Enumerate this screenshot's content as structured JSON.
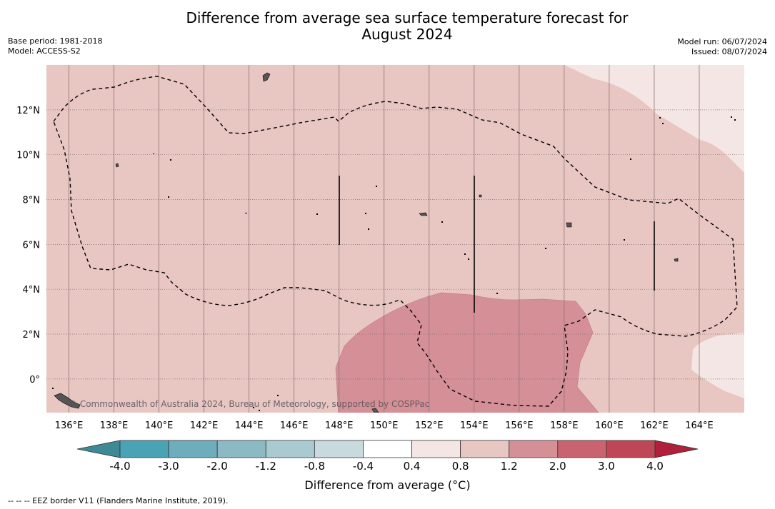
{
  "title_line1": "Difference from average sea surface temperature forecast for",
  "title_line2": "August 2024",
  "meta_left": {
    "base_period": "Base period: 1981-2018",
    "model": "Model: ACCESS-S2"
  },
  "meta_right": {
    "model_run": "Model run: 06/07/2024",
    "issued": "Issued: 08/07/2024"
  },
  "map": {
    "lat_labels": [
      "12°N",
      "10°N",
      "8°N",
      "6°N",
      "4°N",
      "2°N",
      "0°"
    ],
    "lat_values": [
      12,
      10,
      8,
      6,
      4,
      2,
      0
    ],
    "lon_labels": [
      "136°E",
      "138°E",
      "140°E",
      "142°E",
      "144°E",
      "146°E",
      "148°E",
      "150°E",
      "152°E",
      "154°E",
      "156°E",
      "158°E",
      "160°E",
      "162°E",
      "164°E"
    ],
    "lon_values": [
      136,
      138,
      140,
      142,
      144,
      146,
      148,
      150,
      152,
      154,
      156,
      158,
      160,
      162,
      164
    ],
    "extent": {
      "lon_min": 135.0,
      "lon_max": 166.0,
      "lat_min": -1.5,
      "lat_max": 14.0
    },
    "copyright": "© Commonwealth of Australia 2024, Bureau of Meteorology, supported by COSPPac",
    "colors": {
      "base": "#e8c6c2",
      "light": "#f4e6e4",
      "warm": "#d58f97"
    }
  },
  "colorbar": {
    "tick_labels": [
      "-4.0",
      "-3.0",
      "-2.0",
      "-1.2",
      "-0.8",
      "-0.4",
      "0.4",
      "0.8",
      "1.2",
      "2.0",
      "3.0",
      "4.0"
    ],
    "colors": [
      "#4aa3b4",
      "#6eadbc",
      "#8bbac4",
      "#a9cbd0",
      "#c8dade",
      "#ffffff",
      "#f4e6e4",
      "#e8c6c2",
      "#d58f97",
      "#c9636f",
      "#bf4656"
    ],
    "under_color": "#3d8a96",
    "over_color": "#b0203a",
    "label": "Difference from average (°C)"
  },
  "footnote": "--  --  -- EEZ border V11 (Flanders Marine Institute, 2019)."
}
